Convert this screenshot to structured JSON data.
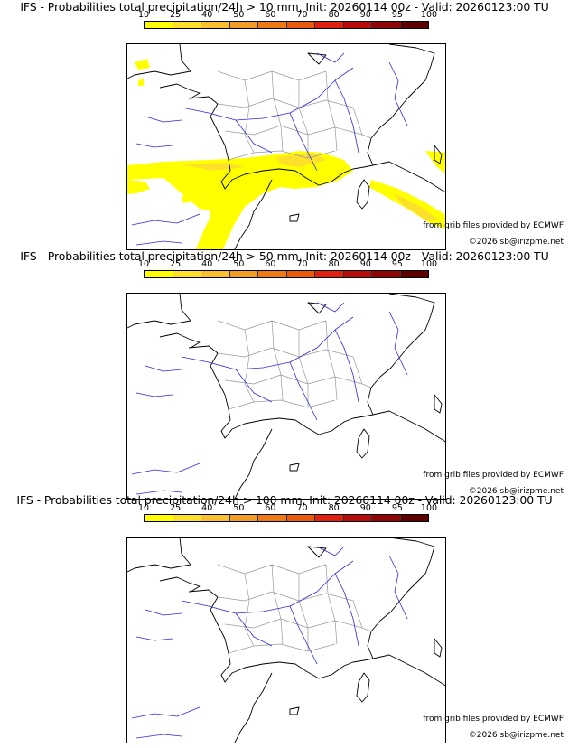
{
  "colorbar": {
    "ticks": [
      "10",
      "25",
      "40",
      "50",
      "60",
      "70",
      "80",
      "90",
      "95",
      "100"
    ],
    "colors": [
      "#ffff00",
      "#fde02a",
      "#f8bf2e",
      "#f29d26",
      "#ee7a16",
      "#ea5a0c",
      "#e02010",
      "#b80c0c",
      "#8e0606",
      "#5c0000"
    ]
  },
  "panels": [
    {
      "title": "IFS - Probabilities total precipitation/24h > 10 mm, Init: 20260114 00z - Valid: 20260123:00 TU",
      "precip_level": "high",
      "source": "from grib files provided by ECMWF",
      "copyright": "©2026 sb@irizpme.net"
    },
    {
      "title": "IFS - Probabilities total precipitation/24h > 50 mm, Init: 20260114 00z - Valid: 20260123:00 TU",
      "precip_level": "none",
      "source": "from grib files provided by ECMWF",
      "copyright": "©2026 sb@irizpme.net"
    },
    {
      "title": "IFS - Probabilities total precipitation/24h > 100 mm, Init: 20260114 00z - Valid: 20260123:00 TU",
      "precip_level": "none",
      "source": "from grib files provided by ECMWF",
      "copyright": "©2026 sb@irizpme.net"
    }
  ]
}
